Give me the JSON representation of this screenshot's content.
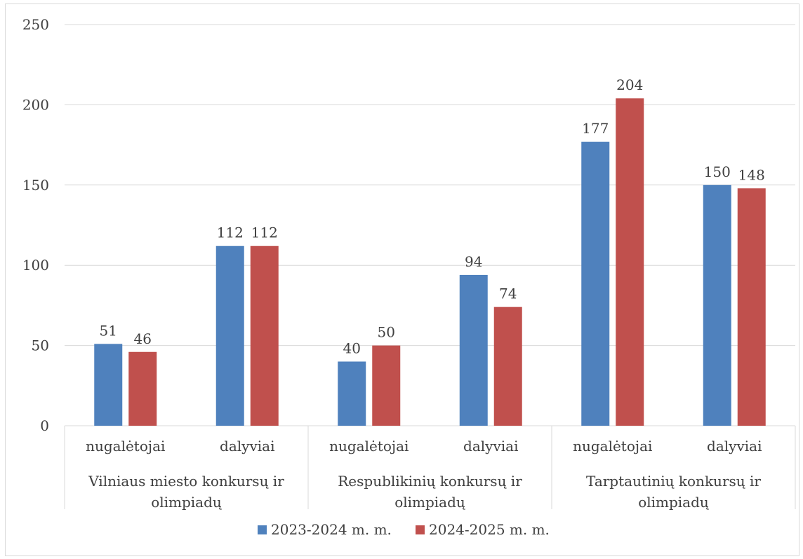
{
  "chart_data": {
    "type": "bar",
    "ylim": [
      0,
      250
    ],
    "yticks": [
      "0",
      "50",
      "100",
      "150",
      "200",
      "250"
    ],
    "grid": true,
    "legend_position": "bottom",
    "groups": [
      {
        "label": "Vilniaus miesto konkursų ir olimpiadų",
        "label_lines": [
          "Vilniaus miesto konkursų ir",
          "olimpiadų"
        ]
      },
      {
        "label": "Respublikinių konkursų ir olimpiadų",
        "label_lines": [
          "Respublikinių konkursų ir",
          "olimpiadų"
        ]
      },
      {
        "label": "Tarptautinių konkursų ir olimpiadų",
        "label_lines": [
          "Tarptautinių konkursų ir",
          "olimpiadų"
        ]
      }
    ],
    "categories": [
      "nugalėtojai",
      "dalyviai",
      "nugalėtojai",
      "dalyviai",
      "nugalėtojai",
      "dalyviai"
    ],
    "series": [
      {
        "name": "2023-2024 m. m.",
        "color": "#4f81bd",
        "values": [
          51,
          112,
          40,
          94,
          177,
          150
        ]
      },
      {
        "name": "2024-2025 m. m.",
        "color": "#c0504d",
        "values": [
          46,
          112,
          50,
          74,
          204,
          148
        ]
      }
    ]
  }
}
